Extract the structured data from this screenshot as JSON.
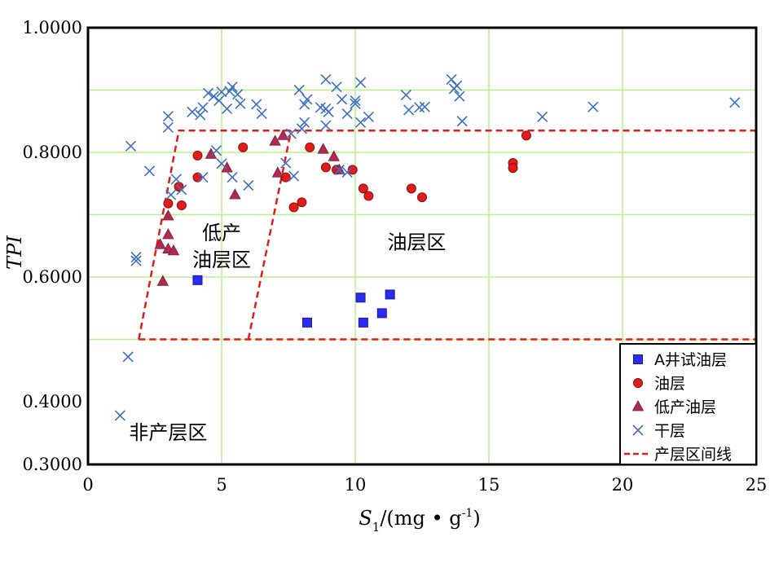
{
  "chart_data": {
    "type": "scatter",
    "xlabel": {
      "main": "S",
      "sub": "1",
      "unit": "/(mg • g",
      "sup": "-1",
      "close": ")"
    },
    "ylabel": "TPI",
    "xlim": [
      0,
      25
    ],
    "ylim": [
      0.3,
      1.0
    ],
    "x_ticks": [
      0,
      5,
      10,
      15,
      20,
      25
    ],
    "x_tick_labels": [
      "0",
      "5",
      "10",
      "15",
      "20",
      "25"
    ],
    "y_ticks": [
      0.3,
      0.4,
      0.6,
      0.8,
      1.0
    ],
    "y_tick_labels": [
      "0.3000",
      "0.4000",
      "0.6000",
      "0.8000",
      "1.0000"
    ],
    "grid": true,
    "grid_color": "#b8f08c",
    "legend_position": "bottom-right",
    "region_labels": [
      {
        "text_lines": [
          "低产",
          "油层区"
        ],
        "x": 5.0,
        "y": 0.66
      },
      {
        "text_lines": [
          "油层区"
        ],
        "x": 12.3,
        "y": 0.645
      },
      {
        "text_lines": [
          "非产层区"
        ],
        "x": 3.0,
        "y": 0.34
      }
    ],
    "series": [
      {
        "name": "A井试油层",
        "marker": "square",
        "color": "#2b2bf2",
        "points": [
          [
            4.1,
            0.595
          ],
          [
            8.2,
            0.527
          ],
          [
            10.2,
            0.567
          ],
          [
            10.3,
            0.527
          ],
          [
            11.0,
            0.542
          ],
          [
            11.3,
            0.572
          ]
        ]
      },
      {
        "name": "油层",
        "marker": "circle",
        "color": "#e21b1b",
        "points": [
          [
            3.0,
            0.718
          ],
          [
            3.4,
            0.745
          ],
          [
            3.5,
            0.715
          ],
          [
            4.1,
            0.795
          ],
          [
            4.1,
            0.76
          ],
          [
            5.8,
            0.808
          ],
          [
            7.4,
            0.76
          ],
          [
            7.7,
            0.712
          ],
          [
            8.0,
            0.72
          ],
          [
            8.3,
            0.808
          ],
          [
            8.9,
            0.776
          ],
          [
            9.3,
            0.772
          ],
          [
            9.9,
            0.772
          ],
          [
            10.3,
            0.742
          ],
          [
            10.5,
            0.73
          ],
          [
            12.1,
            0.742
          ],
          [
            12.5,
            0.728
          ],
          [
            15.9,
            0.783
          ],
          [
            15.9,
            0.775
          ],
          [
            16.4,
            0.827
          ]
        ]
      },
      {
        "name": "低产油层",
        "marker": "triangle",
        "color": "#b02a50",
        "points": [
          [
            2.7,
            0.652
          ],
          [
            2.8,
            0.593
          ],
          [
            3.0,
            0.698
          ],
          [
            3.0,
            0.668
          ],
          [
            3.0,
            0.645
          ],
          [
            3.2,
            0.642
          ],
          [
            4.6,
            0.797
          ],
          [
            5.2,
            0.775
          ],
          [
            5.5,
            0.732
          ],
          [
            7.0,
            0.818
          ],
          [
            7.1,
            0.767
          ],
          [
            7.3,
            0.827
          ],
          [
            8.8,
            0.805
          ],
          [
            9.2,
            0.793
          ],
          [
            9.4,
            0.772
          ]
        ]
      },
      {
        "name": "干层",
        "marker": "x",
        "color": "#3e6fc4",
        "points": [
          [
            1.2,
            0.378
          ],
          [
            1.5,
            0.472
          ],
          [
            1.6,
            0.81
          ],
          [
            1.8,
            0.632
          ],
          [
            1.8,
            0.626
          ],
          [
            2.3,
            0.77
          ],
          [
            3.0,
            0.858
          ],
          [
            3.0,
            0.84
          ],
          [
            3.1,
            0.732
          ],
          [
            3.3,
            0.757
          ],
          [
            3.5,
            0.74
          ],
          [
            3.9,
            0.865
          ],
          [
            4.2,
            0.86
          ],
          [
            4.3,
            0.872
          ],
          [
            4.3,
            0.76
          ],
          [
            4.5,
            0.895
          ],
          [
            4.7,
            0.89
          ],
          [
            4.8,
            0.803
          ],
          [
            4.9,
            0.883
          ],
          [
            5.0,
            0.897
          ],
          [
            5.0,
            0.782
          ],
          [
            5.2,
            0.87
          ],
          [
            5.3,
            0.898
          ],
          [
            5.4,
            0.905
          ],
          [
            5.4,
            0.76
          ],
          [
            5.6,
            0.893
          ],
          [
            5.7,
            0.878
          ],
          [
            6.0,
            0.747
          ],
          [
            6.3,
            0.877
          ],
          [
            6.5,
            0.862
          ],
          [
            7.4,
            0.783
          ],
          [
            7.6,
            0.83
          ],
          [
            7.7,
            0.762
          ],
          [
            7.9,
            0.9
          ],
          [
            8.0,
            0.838
          ],
          [
            8.1,
            0.848
          ],
          [
            8.1,
            0.877
          ],
          [
            8.2,
            0.885
          ],
          [
            8.7,
            0.872
          ],
          [
            8.9,
            0.917
          ],
          [
            8.9,
            0.87
          ],
          [
            8.9,
            0.843
          ],
          [
            9.0,
            0.865
          ],
          [
            9.3,
            0.905
          ],
          [
            9.4,
            0.772
          ],
          [
            9.5,
            0.885
          ],
          [
            9.7,
            0.768
          ],
          [
            9.7,
            0.862
          ],
          [
            10.0,
            0.878
          ],
          [
            10.0,
            0.883
          ],
          [
            10.2,
            0.912
          ],
          [
            10.2,
            0.848
          ],
          [
            10.5,
            0.857
          ],
          [
            11.9,
            0.892
          ],
          [
            12.0,
            0.868
          ],
          [
            12.4,
            0.872
          ],
          [
            12.6,
            0.873
          ],
          [
            13.6,
            0.917
          ],
          [
            13.7,
            0.902
          ],
          [
            13.8,
            0.907
          ],
          [
            13.9,
            0.89
          ],
          [
            14.0,
            0.85
          ],
          [
            17.0,
            0.857
          ],
          [
            18.9,
            0.873
          ],
          [
            24.2,
            0.88
          ]
        ]
      },
      {
        "name": "产层区间线",
        "marker": "dashed-line",
        "color": "#e21b1b",
        "lines": [
          [
            [
              1.9,
              0.5
            ],
            [
              3.4,
              0.835
            ],
            [
              25,
              0.835
            ]
          ],
          [
            [
              1.9,
              0.5
            ],
            [
              25,
              0.5
            ]
          ],
          [
            [
              6.0,
              0.5
            ],
            [
              7.6,
              0.835
            ]
          ]
        ]
      }
    ]
  }
}
